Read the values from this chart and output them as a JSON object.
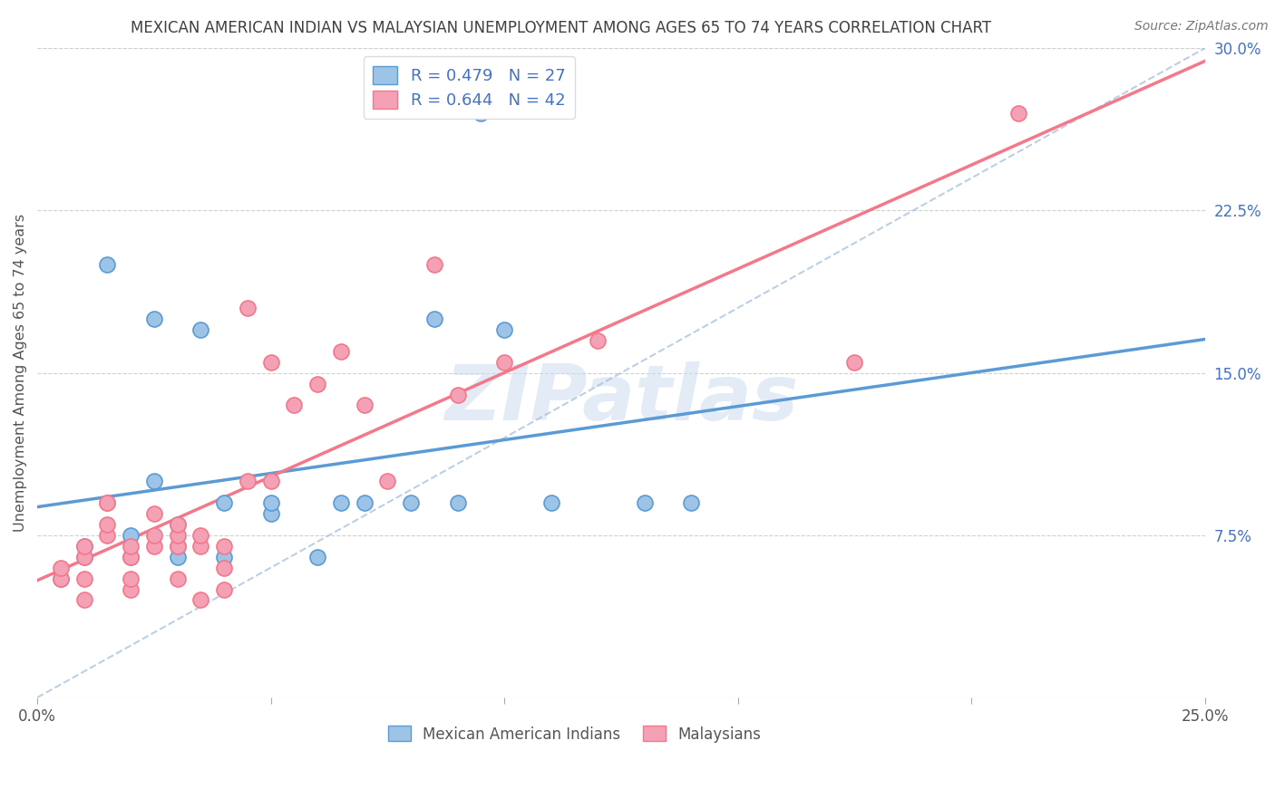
{
  "title": "MEXICAN AMERICAN INDIAN VS MALAYSIAN UNEMPLOYMENT AMONG AGES 65 TO 74 YEARS CORRELATION CHART",
  "source": "Source: ZipAtlas.com",
  "ylabel": "Unemployment Among Ages 65 to 74 years",
  "y_ticks_right": [
    0.075,
    0.15,
    0.225,
    0.3
  ],
  "y_tick_labels_right": [
    "7.5%",
    "15.0%",
    "22.5%",
    "30.0%"
  ],
  "x_ticks": [
    0.0,
    0.05,
    0.1,
    0.15,
    0.2,
    0.25
  ],
  "x_tick_labels": [
    "0.0%",
    "",
    "",
    "",
    "",
    "25.0%"
  ],
  "xlim": [
    0.0,
    0.25
  ],
  "ylim": [
    0.0,
    0.3
  ],
  "blue_line_color": "#5b9bd5",
  "blue_scatter_face": "#9dc3e6",
  "blue_scatter_edge": "#5b9bd5",
  "pink_line_color": "#f4778a",
  "pink_scatter_face": "#f4a0b5",
  "pink_scatter_edge": "#f4778a",
  "dash_color": "#a0bcd8",
  "grid_color": "#d0d0d0",
  "bg_color": "#ffffff",
  "title_color": "#404040",
  "right_tick_color": "#4472c4",
  "watermark": "ZIPatlas",
  "legend_label_blue": "Mexican American Indians",
  "legend_label_pink": "Malaysians",
  "legend_blue_r": "0.479",
  "legend_blue_n": "27",
  "legend_pink_r": "0.644",
  "legend_pink_n": "42",
  "blue_scatter_x": [
    0.005,
    0.01,
    0.01,
    0.015,
    0.02,
    0.02,
    0.025,
    0.025,
    0.03,
    0.03,
    0.03,
    0.035,
    0.04,
    0.04,
    0.05,
    0.05,
    0.06,
    0.065,
    0.07,
    0.08,
    0.085,
    0.09,
    0.095,
    0.1,
    0.11,
    0.13,
    0.14
  ],
  "blue_scatter_y": [
    0.055,
    0.065,
    0.07,
    0.2,
    0.065,
    0.075,
    0.1,
    0.175,
    0.065,
    0.07,
    0.08,
    0.17,
    0.065,
    0.09,
    0.085,
    0.09,
    0.065,
    0.09,
    0.09,
    0.09,
    0.175,
    0.09,
    0.27,
    0.17,
    0.09,
    0.09,
    0.09
  ],
  "pink_scatter_x": [
    0.005,
    0.005,
    0.01,
    0.01,
    0.01,
    0.01,
    0.015,
    0.015,
    0.015,
    0.015,
    0.02,
    0.02,
    0.02,
    0.02,
    0.025,
    0.025,
    0.025,
    0.03,
    0.03,
    0.03,
    0.03,
    0.035,
    0.035,
    0.035,
    0.04,
    0.04,
    0.04,
    0.045,
    0.045,
    0.05,
    0.05,
    0.055,
    0.06,
    0.065,
    0.07,
    0.075,
    0.085,
    0.09,
    0.1,
    0.12,
    0.175,
    0.21
  ],
  "pink_scatter_y": [
    0.055,
    0.06,
    0.045,
    0.055,
    0.065,
    0.07,
    0.075,
    0.08,
    0.09,
    0.09,
    0.05,
    0.055,
    0.065,
    0.07,
    0.07,
    0.075,
    0.085,
    0.055,
    0.07,
    0.075,
    0.08,
    0.045,
    0.07,
    0.075,
    0.05,
    0.06,
    0.07,
    0.1,
    0.18,
    0.1,
    0.155,
    0.135,
    0.145,
    0.16,
    0.135,
    0.1,
    0.2,
    0.14,
    0.155,
    0.165,
    0.155,
    0.27
  ]
}
